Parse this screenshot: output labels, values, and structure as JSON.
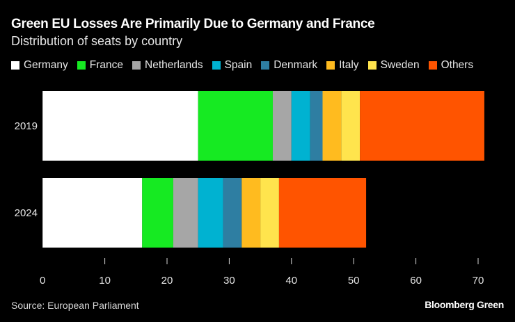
{
  "chart_data": {
    "type": "bar",
    "orientation": "horizontal",
    "stacked": true,
    "title": "Green EU Losses Are Primarily Due to Germany and France",
    "subtitle": "Distribution of seats by country",
    "categories": [
      "2019",
      "2024"
    ],
    "series": [
      {
        "name": "Germany",
        "color": "#ffffff",
        "values": [
          25,
          16
        ]
      },
      {
        "name": "France",
        "color": "#16ea22",
        "values": [
          12,
          5
        ]
      },
      {
        "name": "Netherlands",
        "color": "#a6a6a6",
        "values": [
          3,
          4
        ]
      },
      {
        "name": "Spain",
        "color": "#00b2d1",
        "values": [
          3,
          4
        ]
      },
      {
        "name": "Denmark",
        "color": "#2e7ea2",
        "values": [
          2,
          3
        ]
      },
      {
        "name": "Italy",
        "color": "#ffbb1f",
        "values": [
          3,
          3
        ]
      },
      {
        "name": "Sweden",
        "color": "#ffe44d",
        "values": [
          3,
          3
        ]
      },
      {
        "name": "Others",
        "color": "#ff5400",
        "values": [
          20,
          14
        ]
      }
    ],
    "xlim": [
      0,
      71
    ],
    "xticks": [
      0,
      10,
      20,
      30,
      40,
      50,
      60,
      70
    ],
    "xlabel": "",
    "ylabel": "",
    "grid": false,
    "legend_position": "top-left"
  },
  "footer": {
    "source": "Source: European Parliament",
    "brand": "Bloomberg Green"
  }
}
